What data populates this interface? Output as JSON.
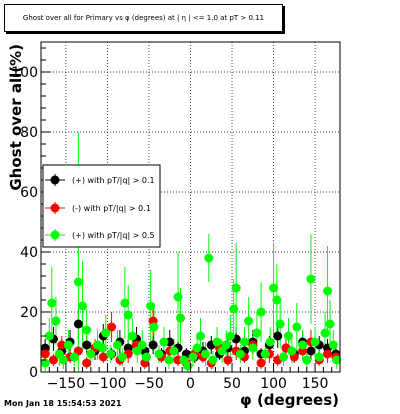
{
  "title": "Ghost over all for Primary vs φ (degrees) at | η | <= 1.0 at pT > 0.11",
  "timestamp": "Mon Jan 18 15:54:53 2021",
  "chart_data": {
    "type": "scatter",
    "title": "Ghost over all for Primary vs φ (degrees) at | η | <= 1.0 at pT > 0.11",
    "xlabel": "φ (degrees)",
    "ylabel": "Ghost over all(%)",
    "xlim": [
      -180,
      180
    ],
    "ylim": [
      0,
      110
    ],
    "x_ticks": [
      -150,
      -100,
      -50,
      0,
      50,
      100,
      150
    ],
    "y_ticks": [
      0,
      20,
      40,
      60,
      80,
      100
    ],
    "grid": true,
    "legend_position": "middle-left",
    "series": [
      {
        "name": "(+) with pT/|q| > 0.1",
        "color": "#000000",
        "points": [
          [
            -175,
            8,
            3
          ],
          [
            -165,
            11,
            4
          ],
          [
            -155,
            7,
            3
          ],
          [
            -145,
            10,
            4
          ],
          [
            -135,
            16,
            5
          ],
          [
            -125,
            9,
            3
          ],
          [
            -115,
            7,
            3
          ],
          [
            -105,
            12,
            4
          ],
          [
            -95,
            6,
            2
          ],
          [
            -85,
            10,
            4
          ],
          [
            -75,
            8,
            3
          ],
          [
            -65,
            11,
            4
          ],
          [
            -55,
            7,
            3
          ],
          [
            -45,
            9,
            3
          ],
          [
            -35,
            6,
            2
          ],
          [
            -25,
            10,
            4
          ],
          [
            -15,
            8,
            3
          ],
          [
            -5,
            6,
            2
          ],
          [
            5,
            5,
            2
          ],
          [
            15,
            7,
            3
          ],
          [
            25,
            9,
            3
          ],
          [
            35,
            6,
            2
          ],
          [
            45,
            8,
            3
          ],
          [
            55,
            11,
            4
          ],
          [
            65,
            7,
            3
          ],
          [
            75,
            10,
            4
          ],
          [
            85,
            6,
            2
          ],
          [
            95,
            9,
            3
          ],
          [
            105,
            12,
            4
          ],
          [
            115,
            8,
            3
          ],
          [
            125,
            6,
            2
          ],
          [
            135,
            10,
            4
          ],
          [
            145,
            7,
            3
          ],
          [
            155,
            9,
            3
          ],
          [
            165,
            8,
            3
          ],
          [
            175,
            6,
            2
          ]
        ]
      },
      {
        "name": "(-) with pT/|q| > 0.1",
        "color": "#ff0000",
        "points": [
          [
            -175,
            6,
            3
          ],
          [
            -165,
            4,
            2
          ],
          [
            -155,
            9,
            3
          ],
          [
            -145,
            5,
            2
          ],
          [
            -135,
            7,
            3
          ],
          [
            -125,
            3,
            2
          ],
          [
            -115,
            8,
            3
          ],
          [
            -105,
            5,
            2
          ],
          [
            -95,
            15,
            5
          ],
          [
            -85,
            4,
            2
          ],
          [
            -75,
            6,
            3
          ],
          [
            -65,
            9,
            3
          ],
          [
            -55,
            3,
            2
          ],
          [
            -45,
            17,
            5
          ],
          [
            -35,
            5,
            2
          ],
          [
            -25,
            7,
            3
          ],
          [
            -15,
            4,
            2
          ],
          [
            -5,
            3,
            2
          ],
          [
            5,
            6,
            3
          ],
          [
            15,
            5,
            2
          ],
          [
            25,
            3,
            2
          ],
          [
            35,
            8,
            3
          ],
          [
            45,
            4,
            2
          ],
          [
            55,
            7,
            3
          ],
          [
            65,
            5,
            2
          ],
          [
            75,
            9,
            3
          ],
          [
            85,
            3,
            2
          ],
          [
            95,
            6,
            3
          ],
          [
            105,
            4,
            2
          ],
          [
            115,
            8,
            3
          ],
          [
            125,
            5,
            2
          ],
          [
            135,
            7,
            3
          ],
          [
            145,
            10,
            4
          ],
          [
            155,
            4,
            2
          ],
          [
            165,
            6,
            3
          ],
          [
            175,
            5,
            2
          ]
        ]
      },
      {
        "name": "(+) with pT/|q| > 0.5",
        "color": "#00ff00",
        "points": [
          [
            -175,
            3,
            3
          ],
          [
            -170,
            12,
            6
          ],
          [
            -167,
            23,
            12
          ],
          [
            -162,
            17,
            8
          ],
          [
            -158,
            6,
            4
          ],
          [
            -153,
            4,
            3
          ],
          [
            -147,
            9,
            5
          ],
          [
            -140,
            5,
            3
          ],
          [
            -135,
            30,
            50
          ],
          [
            -130,
            22,
            15
          ],
          [
            -125,
            14,
            7
          ],
          [
            -120,
            6,
            4
          ],
          [
            -112,
            9,
            5
          ],
          [
            -106,
            8,
            4
          ],
          [
            -102,
            13,
            6
          ],
          [
            -96,
            6,
            3
          ],
          [
            -88,
            9,
            5
          ],
          [
            -82,
            5,
            3
          ],
          [
            -79,
            23,
            12
          ],
          [
            -75,
            19,
            10
          ],
          [
            -70,
            12,
            6
          ],
          [
            -64,
            7,
            4
          ],
          [
            -58,
            9,
            5
          ],
          [
            -53,
            5,
            3
          ],
          [
            -48,
            22,
            12
          ],
          [
            -44,
            15,
            8
          ],
          [
            -38,
            6,
            3
          ],
          [
            -32,
            10,
            5
          ],
          [
            -26,
            4,
            3
          ],
          [
            -20,
            7,
            4
          ],
          [
            -15,
            25,
            15
          ],
          [
            -12,
            18,
            10
          ],
          [
            -8,
            4,
            3
          ],
          [
            -3,
            2,
            2
          ],
          [
            3,
            5,
            3
          ],
          [
            8,
            8,
            4
          ],
          [
            12,
            12,
            6
          ],
          [
            18,
            6,
            4
          ],
          [
            22,
            38,
            8
          ],
          [
            27,
            4,
            3
          ],
          [
            32,
            10,
            5
          ],
          [
            38,
            7,
            4
          ],
          [
            43,
            9,
            5
          ],
          [
            48,
            12,
            7
          ],
          [
            52,
            21,
            10
          ],
          [
            55,
            28,
            15
          ],
          [
            60,
            6,
            3
          ],
          [
            65,
            10,
            5
          ],
          [
            70,
            17,
            8
          ],
          [
            75,
            8,
            4
          ],
          [
            80,
            13,
            7
          ],
          [
            85,
            20,
            10
          ],
          [
            90,
            6,
            3
          ],
          [
            96,
            10,
            5
          ],
          [
            100,
            28,
            15
          ],
          [
            104,
            24,
            12
          ],
          [
            108,
            16,
            8
          ],
          [
            112,
            5,
            3
          ],
          [
            118,
            12,
            6
          ],
          [
            122,
            7,
            4
          ],
          [
            128,
            15,
            8
          ],
          [
            135,
            9,
            5
          ],
          [
            140,
            4,
            3
          ],
          [
            145,
            31,
            15
          ],
          [
            150,
            10,
            5
          ],
          [
            155,
            5,
            3
          ],
          [
            162,
            13,
            7
          ],
          [
            165,
            27,
            15
          ],
          [
            168,
            16,
            8
          ],
          [
            172,
            9,
            5
          ],
          [
            176,
            4,
            3
          ]
        ]
      }
    ]
  }
}
